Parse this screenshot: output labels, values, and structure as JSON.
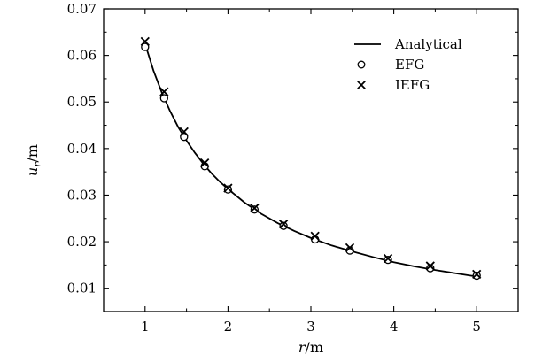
{
  "chart_data": {
    "type": "line",
    "xlabel": "r/m",
    "ylabel": "u_r/m",
    "xlim": [
      0.5,
      5.5
    ],
    "ylim": [
      0.005,
      0.07
    ],
    "xticks": [
      1,
      2,
      3,
      4,
      5
    ],
    "yticks": [
      0.01,
      0.02,
      0.03,
      0.04,
      0.05,
      0.06,
      0.07
    ],
    "x_tick_labels": [
      "1",
      "2",
      "3",
      "4",
      "5"
    ],
    "y_tick_labels": [
      "0.01",
      "0.02",
      "0.03",
      "0.04",
      "0.05",
      "0.06",
      "0.07"
    ],
    "grid": false,
    "legend_position": "top-right",
    "series": [
      {
        "name": "Analytical",
        "style": "line",
        "x": [
          1.0,
          1.1,
          1.2,
          1.3,
          1.4,
          1.5,
          1.6,
          1.7,
          1.8,
          1.9,
          2.0,
          2.2,
          2.4,
          2.6,
          2.8,
          3.0,
          3.25,
          3.5,
          3.75,
          4.0,
          4.25,
          4.5,
          4.75,
          5.0
        ],
        "y": [
          0.0625,
          0.0568,
          0.0521,
          0.0481,
          0.0446,
          0.0417,
          0.0391,
          0.0368,
          0.0347,
          0.0329,
          0.0313,
          0.0284,
          0.026,
          0.024,
          0.0223,
          0.0208,
          0.0192,
          0.0179,
          0.0167,
          0.0156,
          0.0147,
          0.0139,
          0.0132,
          0.0125
        ]
      },
      {
        "name": "EFG",
        "style": "circle",
        "x": [
          1.0,
          1.23,
          1.47,
          1.72,
          2.0,
          2.32,
          2.67,
          3.05,
          3.47,
          3.93,
          4.44,
          5.0
        ],
        "y": [
          0.0618,
          0.0508,
          0.0425,
          0.0362,
          0.0312,
          0.0269,
          0.0234,
          0.0205,
          0.0181,
          0.0161,
          0.0143,
          0.0127
        ]
      },
      {
        "name": "IEFG",
        "style": "cross",
        "x": [
          1.0,
          1.23,
          1.47,
          1.72,
          2.0,
          2.32,
          2.67,
          3.05,
          3.47,
          3.93,
          4.44,
          5.0
        ],
        "y": [
          0.063,
          0.0522,
          0.0436,
          0.0369,
          0.0315,
          0.0272,
          0.0238,
          0.0212,
          0.0187,
          0.0164,
          0.0148,
          0.013
        ]
      }
    ]
  }
}
